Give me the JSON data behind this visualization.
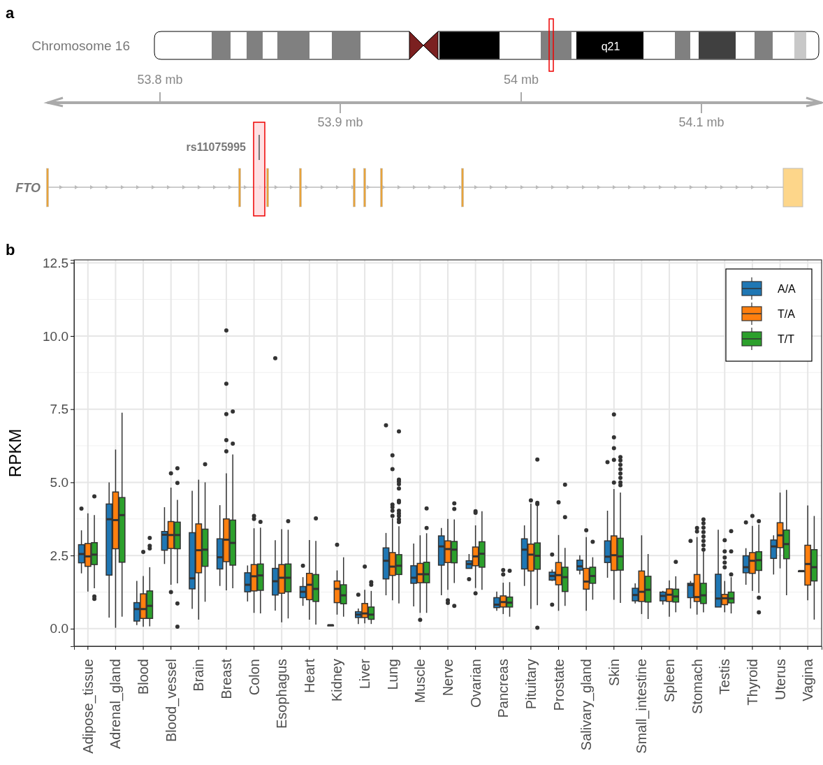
{
  "chart_data": [
    {
      "type": "other",
      "title": "a",
      "annotations": [
        "Chromosome 16",
        "q21",
        "rs11075995",
        "FTO",
        "53.8 mb",
        "53.9 mb",
        "54 mb",
        "54.1 mb"
      ]
    },
    {
      "type": "box",
      "title": "b",
      "ylabel": "RPKM",
      "ylim": [
        -0.6,
        12.6
      ],
      "yticks": [
        {
          "value": 0,
          "label": "0.0"
        },
        2.5,
        {
          "value": 5,
          "label": "5.0"
        },
        7.5,
        {
          "value": 10,
          "label": "10.0"
        },
        12.5
      ],
      "grid": true,
      "legend": "top right",
      "categories": [
        "Adipose_tissue",
        "Adrenal_gland",
        "Blood",
        "Blood_vessel",
        "Brain",
        "Breast",
        "Colon",
        "Esophagus",
        "Heart",
        "Kidney",
        "Liver",
        "Lung",
        "Muscle",
        "Nerve",
        "Ovarian",
        "Pancreas",
        "Pituitary",
        "Prostate",
        "Salivary_gland",
        "Skin",
        "Small_intestine",
        "Spleen",
        "Stomach",
        "Testis",
        "Thyroid",
        "Uterus",
        "Vagina"
      ],
      "series": [
        {
          "name": "A/A",
          "color": "#1f77b4",
          "boxes": [
            {
              "low": 1.89,
              "q1": 2.25,
              "median": 2.55,
              "q3": 2.87,
              "high": 3.36,
              "outliers": [
                4.1
              ]
            },
            {
              "low": 0.38,
              "q1": 1.83,
              "median": 3.74,
              "q3": 4.26,
              "high": 5.0
            },
            {
              "low": 0.12,
              "q1": 0.26,
              "median": 0.67,
              "q3": 0.89,
              "high": 1.63
            },
            {
              "low": 2.21,
              "q1": 2.68,
              "median": 3.21,
              "q3": 3.32,
              "high": 4.15
            },
            {
              "low": 0.68,
              "q1": 1.36,
              "median": 1.72,
              "q3": 3.28,
              "high": 4.71
            },
            {
              "low": 1.46,
              "q1": 2.04,
              "median": 2.44,
              "q3": 3.07,
              "high": 4.22
            },
            {
              "low": 0.93,
              "q1": 1.26,
              "median": 1.5,
              "q3": 1.91,
              "high": 2.16
            },
            {
              "low": 0.62,
              "q1": 1.15,
              "median": 1.62,
              "q3": 2.06,
              "high": 3.02,
              "outliers": [
                9.24
              ]
            },
            {
              "low": 0.78,
              "q1": 1.06,
              "median": 1.26,
              "q3": 1.44,
              "high": 1.76,
              "outliers": [
                2.15
              ]
            },
            {
              "low": 0.1,
              "q1": 0.12,
              "median": 0.12,
              "q3": 0.12,
              "high": 0.13
            },
            {
              "low": 0.16,
              "q1": 0.38,
              "median": 0.48,
              "q3": 0.58,
              "high": 0.69,
              "outliers": [
                1.16
              ]
            },
            {
              "low": 1.14,
              "q1": 1.7,
              "median": 2.32,
              "q3": 2.76,
              "high": 3.27,
              "outliers": [
                6.95
              ]
            },
            {
              "low": 0.76,
              "q1": 1.55,
              "median": 1.74,
              "q3": 2.15,
              "high": 2.91
            },
            {
              "low": 1.14,
              "q1": 2.17,
              "median": 2.81,
              "q3": 3.17,
              "high": 3.44
            },
            {
              "low": 2.06,
              "q1": 2.06,
              "median": 2.21,
              "q3": 2.32,
              "high": 2.55,
              "outliers": [
                1.69
              ]
            },
            {
              "low": 0.61,
              "q1": 0.72,
              "median": 0.82,
              "q3": 1.06,
              "high": 1.27
            },
            {
              "low": 1.46,
              "q1": 2.04,
              "median": 2.7,
              "q3": 3.07,
              "high": 3.53
            },
            {
              "low": 1.63,
              "q1": 1.66,
              "median": 1.8,
              "q3": 1.93,
              "high": 2.02,
              "outliers": [
                2.53,
                0.82
              ]
            },
            {
              "low": 1.85,
              "q1": 2.0,
              "median": 2.13,
              "q3": 2.34,
              "high": 2.51
            },
            {
              "low": 1.74,
              "q1": 2.26,
              "median": 2.46,
              "q3": 3.0,
              "high": 4.03,
              "outliers": [
                5.69
              ]
            },
            {
              "low": 0.86,
              "q1": 0.95,
              "median": 1.15,
              "q3": 1.38,
              "high": 1.55
            },
            {
              "low": 0.82,
              "q1": 0.95,
              "median": 1.12,
              "q3": 1.25,
              "high": 1.29
            },
            {
              "low": 0.69,
              "q1": 1.06,
              "median": 1.49,
              "q3": 1.55,
              "high": 1.63,
              "outliers": [
                3.0
              ]
            },
            {
              "low": 0.74,
              "q1": 0.74,
              "median": 1.03,
              "q3": 1.86,
              "high": 3.38
            },
            {
              "low": 1.5,
              "q1": 1.91,
              "median": 2.1,
              "q3": 2.49,
              "high": 2.75,
              "outliers": [
                3.63
              ]
            },
            {
              "low": 1.85,
              "q1": 2.4,
              "median": 2.81,
              "q3": 3.03,
              "high": 3.19
            },
            {
              "low": 1.97,
              "q1": 1.97,
              "median": 1.97,
              "q3": 1.97,
              "high": 1.97
            }
          ]
        },
        {
          "name": "T/A",
          "color": "#ff7f0e",
          "boxes": [
            {
              "low": 1.27,
              "q1": 2.13,
              "median": 2.47,
              "q3": 2.91,
              "high": 3.94
            },
            {
              "low": 0.03,
              "q1": 2.73,
              "median": 3.71,
              "q3": 4.67,
              "high": 6.12
            },
            {
              "low": 0.07,
              "q1": 0.35,
              "median": 0.67,
              "q3": 1.19,
              "high": 1.8,
              "outliers": [
                2.62
              ]
            },
            {
              "low": 1.5,
              "q1": 2.74,
              "median": 3.2,
              "q3": 3.66,
              "high": 4.82,
              "outliers": [
                5.31,
                1.25
              ]
            },
            {
              "low": 0.31,
              "q1": 1.91,
              "median": 2.68,
              "q3": 3.58,
              "high": 5.09
            },
            {
              "low": 1.31,
              "q1": 2.29,
              "median": 3.04,
              "q3": 3.75,
              "high": 5.31,
              "outliers": [
                10.19,
                8.37,
                7.33,
                6.44,
                6.06
              ]
            },
            {
              "low": 0.54,
              "q1": 1.29,
              "median": 1.79,
              "q3": 2.19,
              "high": 3.43,
              "outliers": [
                3.85,
                3.75
              ]
            },
            {
              "low": 0.22,
              "q1": 1.21,
              "median": 1.74,
              "q3": 2.19,
              "high": 3.4
            },
            {
              "low": 0.31,
              "q1": 0.99,
              "median": 1.5,
              "q3": 1.89,
              "high": 3.03
            },
            {
              "low": 0.48,
              "q1": 0.89,
              "median": 1.36,
              "q3": 1.63,
              "high": 1.99,
              "outliers": [
                2.87
              ]
            },
            {
              "low": 0.18,
              "q1": 0.38,
              "median": 0.52,
              "q3": 0.86,
              "high": 1.33,
              "outliers": [
                2.12
              ]
            },
            {
              "low": 0.97,
              "q1": 1.82,
              "median": 2.12,
              "q3": 2.6,
              "high": 3.77,
              "outliers": [
                5.92,
                5.45,
                4.24,
                4.15,
                4.03,
                3.85
              ]
            },
            {
              "low": 0.54,
              "q1": 1.57,
              "median": 1.86,
              "q3": 2.23,
              "high": 3.19,
              "outliers": [
                0.3
              ]
            },
            {
              "low": 1.33,
              "q1": 2.26,
              "median": 2.72,
              "q3": 3.0,
              "high": 3.75,
              "outliers": [
                0.97,
                0.88
              ]
            },
            {
              "low": 1.39,
              "q1": 2.15,
              "median": 2.47,
              "q3": 2.79,
              "high": 3.53,
              "outliers": [
                4.01,
                3.96,
                1.21
              ]
            },
            {
              "low": 0.5,
              "q1": 0.74,
              "median": 0.91,
              "q3": 1.12,
              "high": 1.57,
              "outliers": [
                2.0,
                1.85
              ]
            },
            {
              "low": 0.68,
              "q1": 1.97,
              "median": 2.53,
              "q3": 2.89,
              "high": 4.27,
              "outliers": [
                4.38
              ]
            },
            {
              "low": 0.61,
              "q1": 1.5,
              "median": 1.83,
              "q3": 2.26,
              "high": 3.2,
              "outliers": [
                4.32
              ]
            },
            {
              "low": 0.61,
              "q1": 1.35,
              "median": 1.61,
              "q3": 2.06,
              "high": 3.13,
              "outliers": [
                3.36
              ]
            },
            {
              "low": 0.99,
              "q1": 1.99,
              "median": 2.51,
              "q3": 3.17,
              "high": 4.77,
              "outliers": [
                7.32,
                6.54,
                6.17,
                5.77,
                4.99
              ]
            },
            {
              "low": 0.5,
              "q1": 0.93,
              "median": 1.26,
              "q3": 1.97,
              "high": 3.19
            },
            {
              "low": 0.41,
              "q1": 0.93,
              "median": 1.16,
              "q3": 1.36,
              "high": 1.65
            },
            {
              "low": 0.48,
              "q1": 0.93,
              "median": 1.08,
              "q3": 1.85,
              "high": 3.13,
              "outliers": [
                3.44,
                3.32
              ]
            },
            {
              "low": 0.56,
              "q1": 0.82,
              "median": 1.04,
              "q3": 1.17,
              "high": 1.63,
              "outliers": [
                3.02,
                2.64,
                2.43,
                2.26,
                2.1
              ]
            },
            {
              "low": 1.29,
              "q1": 1.89,
              "median": 2.32,
              "q3": 2.6,
              "high": 3.51,
              "outliers": [
                3.85
              ]
            },
            {
              "low": 2.06,
              "q1": 2.77,
              "median": 3.19,
              "q3": 3.62,
              "high": 4.65
            },
            {
              "low": 0.97,
              "q1": 1.49,
              "median": 2.21,
              "q3": 2.85,
              "high": 4.21
            }
          ]
        },
        {
          "name": "T/T",
          "color": "#2ca02c",
          "boxes": [
            {
              "low": 1.38,
              "q1": 2.19,
              "median": 2.53,
              "q3": 2.94,
              "high": 3.88,
              "outliers": [
                4.52,
                1.1,
                1.02
              ]
            },
            {
              "low": 0.41,
              "q1": 2.27,
              "median": 3.88,
              "q3": 4.48,
              "high": 7.38
            },
            {
              "low": 0.08,
              "q1": 0.35,
              "median": 0.78,
              "q3": 1.29,
              "high": 2.1,
              "outliers": [
                3.1,
                2.83,
                2.74
              ]
            },
            {
              "low": 1.55,
              "q1": 2.73,
              "median": 3.2,
              "q3": 3.64,
              "high": 4.4,
              "outliers": [
                5.48,
                4.98,
                0.86,
                0.07
              ]
            },
            {
              "low": 0.92,
              "q1": 2.13,
              "median": 2.7,
              "q3": 3.4,
              "high": 5.0,
              "outliers": [
                5.62
              ]
            },
            {
              "low": 1.38,
              "q1": 2.17,
              "median": 2.93,
              "q3": 3.71,
              "high": 5.95,
              "outliers": [
                7.42,
                6.32
              ]
            },
            {
              "low": 0.52,
              "q1": 1.31,
              "median": 1.82,
              "q3": 2.21,
              "high": 3.45,
              "outliers": [
                3.65
              ]
            },
            {
              "low": 0.35,
              "q1": 1.26,
              "median": 1.74,
              "q3": 2.21,
              "high": 3.38,
              "outliers": [
                3.67
              ]
            },
            {
              "low": 0.14,
              "q1": 0.93,
              "median": 1.36,
              "q3": 1.85,
              "high": 3.0,
              "outliers": [
                3.77
              ]
            },
            {
              "low": 0.41,
              "q1": 0.85,
              "median": 1.14,
              "q3": 1.5,
              "high": 2.44
            },
            {
              "low": 0.16,
              "q1": 0.32,
              "median": 0.48,
              "q3": 0.74,
              "high": 1.29,
              "outliers": [
                1.5,
                1.59
              ]
            },
            {
              "low": 0.86,
              "q1": 1.85,
              "median": 2.15,
              "q3": 2.53,
              "high": 3.5,
              "outliers": [
                6.74,
                5.09,
                5.03,
                4.94,
                4.79,
                4.37,
                4.32,
                4.03,
                3.94,
                3.85,
                3.73,
                3.64
              ]
            },
            {
              "low": 0.54,
              "q1": 1.57,
              "median": 1.86,
              "q3": 2.27,
              "high": 3.26,
              "outliers": [
                4.11,
                3.44
              ]
            },
            {
              "low": 1.56,
              "q1": 2.25,
              "median": 2.7,
              "q3": 2.98,
              "high": 3.73,
              "outliers": [
                4.28,
                4.09,
                0.78
              ]
            },
            {
              "low": 1.33,
              "q1": 2.1,
              "median": 2.56,
              "q3": 2.97,
              "high": 4.01
            },
            {
              "low": 0.41,
              "q1": 0.74,
              "median": 0.89,
              "q3": 1.08,
              "high": 1.59,
              "outliers": [
                1.98
              ]
            },
            {
              "low": 0.8,
              "q1": 2.03,
              "median": 2.49,
              "q3": 2.93,
              "high": 4.21,
              "outliers": [
                5.78,
                4.3,
                4.26,
                0.03
              ]
            },
            {
              "low": 0.78,
              "q1": 1.27,
              "median": 1.76,
              "q3": 2.1,
              "high": 2.76,
              "outliers": [
                4.92,
                3.81
              ]
            },
            {
              "low": 0.99,
              "q1": 1.55,
              "median": 1.8,
              "q3": 2.1,
              "high": 2.44,
              "outliers": [
                2.97
              ]
            },
            {
              "low": 0.88,
              "q1": 2.0,
              "median": 2.47,
              "q3": 3.09,
              "high": 4.65,
              "outliers": [
                5.86,
                5.75,
                5.6,
                5.45,
                5.3,
                5.15,
                5.0,
                4.9
              ]
            },
            {
              "low": 0.33,
              "q1": 0.91,
              "median": 1.33,
              "q3": 1.79,
              "high": 2.55
            },
            {
              "low": 0.56,
              "q1": 0.91,
              "median": 1.1,
              "q3": 1.35,
              "high": 1.79,
              "outliers": [
                2.28
              ]
            },
            {
              "low": 0.56,
              "q1": 0.86,
              "median": 1.14,
              "q3": 1.55,
              "high": 2.64,
              "outliers": [
                3.73,
                3.6,
                3.45,
                3.3,
                3.15,
                3.0,
                2.85,
                2.7
              ]
            },
            {
              "low": 0.52,
              "q1": 0.88,
              "median": 1.03,
              "q3": 1.25,
              "high": 1.76,
              "outliers": [
                3.33,
                2.64,
                1.85
              ]
            },
            {
              "low": 1.22,
              "q1": 1.99,
              "median": 2.34,
              "q3": 2.63,
              "high": 3.56,
              "outliers": [
                3.67,
                1.06,
                0.56
              ]
            },
            {
              "low": 1.14,
              "q1": 2.39,
              "median": 2.89,
              "q3": 3.37,
              "high": 4.74
            },
            {
              "low": 0.31,
              "q1": 1.63,
              "median": 2.1,
              "q3": 2.7,
              "high": 3.85
            }
          ]
        }
      ]
    }
  ]
}
